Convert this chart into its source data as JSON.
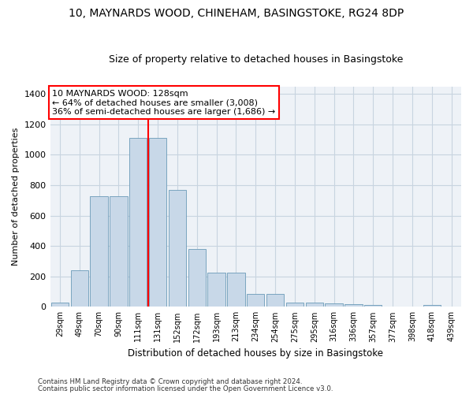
{
  "title": "10, MAYNARDS WOOD, CHINEHAM, BASINGSTOKE, RG24 8DP",
  "subtitle": "Size of property relative to detached houses in Basingstoke",
  "xlabel": "Distribution of detached houses by size in Basingstoke",
  "ylabel": "Number of detached properties",
  "bar_color": "#c8d8e8",
  "bar_edge_color": "#6a9ab8",
  "grid_color": "#c8d4e0",
  "background_color": "#eef2f7",
  "annotation_line_color": "red",
  "annotation_text_line1": "10 MAYNARDS WOOD: 128sqm",
  "annotation_text_line2": "← 64% of detached houses are smaller (3,008)",
  "annotation_text_line3": "36% of semi-detached houses are larger (1,686) →",
  "annotation_box_color": "white",
  "annotation_box_edge": "red",
  "categories": [
    "29sqm",
    "49sqm",
    "70sqm",
    "90sqm",
    "111sqm",
    "131sqm",
    "152sqm",
    "172sqm",
    "193sqm",
    "213sqm",
    "234sqm",
    "254sqm",
    "275sqm",
    "295sqm",
    "316sqm",
    "336sqm",
    "357sqm",
    "377sqm",
    "398sqm",
    "418sqm",
    "439sqm"
  ],
  "values": [
    30,
    240,
    725,
    725,
    1110,
    1110,
    770,
    380,
    225,
    225,
    85,
    85,
    30,
    30,
    20,
    15,
    12,
    0,
    0,
    10,
    0
  ],
  "ylim": [
    0,
    1450
  ],
  "yticks": [
    0,
    200,
    400,
    600,
    800,
    1000,
    1200,
    1400
  ],
  "vline_x": 4.5,
  "footnote1": "Contains HM Land Registry data © Crown copyright and database right 2024.",
  "footnote2": "Contains public sector information licensed under the Open Government Licence v3.0."
}
